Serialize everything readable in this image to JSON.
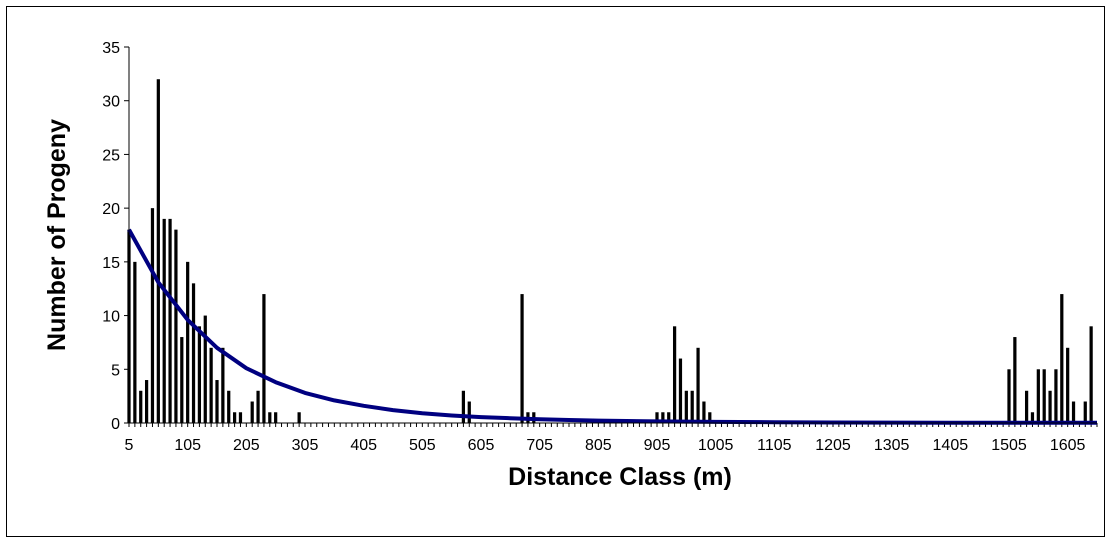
{
  "chart_data": {
    "type": "bar",
    "title": "",
    "xlabel": "Distance Class (m)",
    "ylabel": "Number of Progeny",
    "xlim": [
      5,
      1655
    ],
    "ylim": [
      0,
      35
    ],
    "x_tick_labels": [
      "5",
      "105",
      "205",
      "305",
      "405",
      "505",
      "605",
      "705",
      "805",
      "905",
      "1005",
      "1105",
      "1205",
      "1305",
      "1405",
      "1505",
      "1605"
    ],
    "y_tick_labels": [
      "0",
      "5",
      "10",
      "15",
      "20",
      "25",
      "30",
      "35"
    ],
    "bar_class_width": 10,
    "grid": false,
    "legend": "none",
    "series": [
      {
        "kind": "bar",
        "color": "#000000",
        "points": [
          {
            "x": 5,
            "y": 18
          },
          {
            "x": 15,
            "y": 15
          },
          {
            "x": 25,
            "y": 3
          },
          {
            "x": 35,
            "y": 4
          },
          {
            "x": 45,
            "y": 20
          },
          {
            "x": 55,
            "y": 32
          },
          {
            "x": 65,
            "y": 19
          },
          {
            "x": 75,
            "y": 19
          },
          {
            "x": 85,
            "y": 18
          },
          {
            "x": 95,
            "y": 8
          },
          {
            "x": 105,
            "y": 15
          },
          {
            "x": 115,
            "y": 13
          },
          {
            "x": 125,
            "y": 9
          },
          {
            "x": 135,
            "y": 10
          },
          {
            "x": 145,
            "y": 7
          },
          {
            "x": 155,
            "y": 4
          },
          {
            "x": 165,
            "y": 7
          },
          {
            "x": 175,
            "y": 3
          },
          {
            "x": 185,
            "y": 1
          },
          {
            "x": 195,
            "y": 1
          },
          {
            "x": 215,
            "y": 2
          },
          {
            "x": 225,
            "y": 3
          },
          {
            "x": 235,
            "y": 12
          },
          {
            "x": 245,
            "y": 1
          },
          {
            "x": 255,
            "y": 1
          },
          {
            "x": 295,
            "y": 1
          },
          {
            "x": 575,
            "y": 3
          },
          {
            "x": 585,
            "y": 2
          },
          {
            "x": 675,
            "y": 12
          },
          {
            "x": 685,
            "y": 1
          },
          {
            "x": 695,
            "y": 1
          },
          {
            "x": 905,
            "y": 1
          },
          {
            "x": 915,
            "y": 1
          },
          {
            "x": 925,
            "y": 1
          },
          {
            "x": 935,
            "y": 9
          },
          {
            "x": 945,
            "y": 6
          },
          {
            "x": 955,
            "y": 3
          },
          {
            "x": 965,
            "y": 3
          },
          {
            "x": 975,
            "y": 7
          },
          {
            "x": 985,
            "y": 2
          },
          {
            "x": 995,
            "y": 1
          },
          {
            "x": 1505,
            "y": 5
          },
          {
            "x": 1515,
            "y": 8
          },
          {
            "x": 1535,
            "y": 3
          },
          {
            "x": 1545,
            "y": 1
          },
          {
            "x": 1555,
            "y": 5
          },
          {
            "x": 1565,
            "y": 5
          },
          {
            "x": 1575,
            "y": 3
          },
          {
            "x": 1585,
            "y": 5
          },
          {
            "x": 1595,
            "y": 12
          },
          {
            "x": 1605,
            "y": 7
          },
          {
            "x": 1615,
            "y": 2
          },
          {
            "x": 1635,
            "y": 2
          },
          {
            "x": 1645,
            "y": 9
          }
        ]
      },
      {
        "kind": "line",
        "color": "#000080",
        "points": [
          {
            "x": 5,
            "y": 18.0
          },
          {
            "x": 55,
            "y": 13.1
          },
          {
            "x": 105,
            "y": 9.6
          },
          {
            "x": 155,
            "y": 7.0
          },
          {
            "x": 205,
            "y": 5.1
          },
          {
            "x": 255,
            "y": 3.8
          },
          {
            "x": 305,
            "y": 2.8
          },
          {
            "x": 355,
            "y": 2.1
          },
          {
            "x": 405,
            "y": 1.6
          },
          {
            "x": 455,
            "y": 1.2
          },
          {
            "x": 505,
            "y": 0.9
          },
          {
            "x": 555,
            "y": 0.7
          },
          {
            "x": 605,
            "y": 0.55
          },
          {
            "x": 655,
            "y": 0.45
          },
          {
            "x": 705,
            "y": 0.35
          },
          {
            "x": 755,
            "y": 0.28
          },
          {
            "x": 805,
            "y": 0.22
          },
          {
            "x": 905,
            "y": 0.15
          },
          {
            "x": 1005,
            "y": 0.1
          },
          {
            "x": 1105,
            "y": 0.07
          },
          {
            "x": 1205,
            "y": 0.05
          },
          {
            "x": 1305,
            "y": 0.04
          },
          {
            "x": 1405,
            "y": 0.03
          },
          {
            "x": 1505,
            "y": 0.02
          },
          {
            "x": 1605,
            "y": 0.02
          },
          {
            "x": 1655,
            "y": 0.02
          }
        ]
      }
    ]
  }
}
